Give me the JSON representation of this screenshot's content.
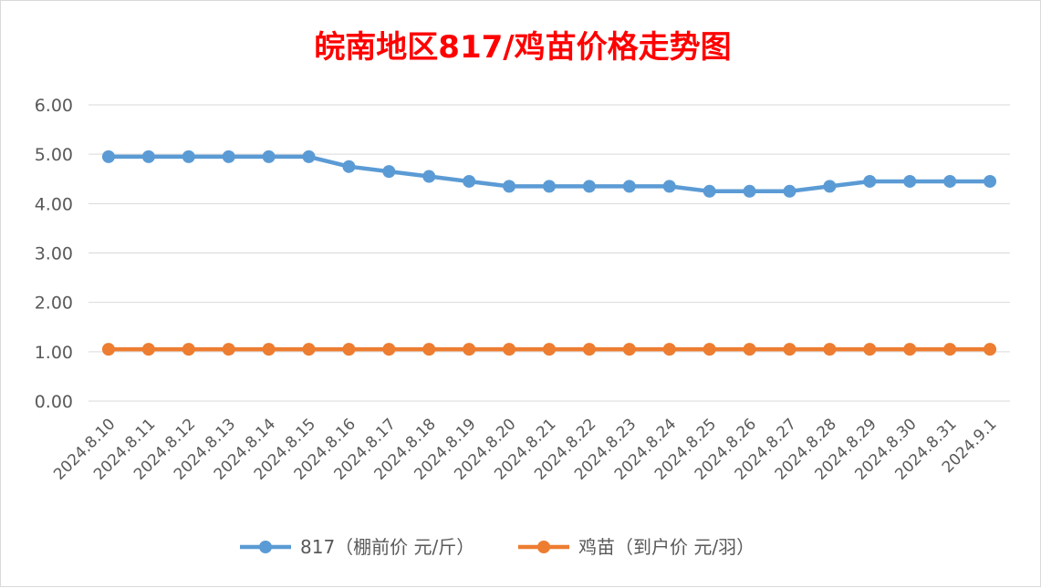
{
  "chart_data": {
    "type": "line",
    "title": "皖南地区817/鸡苗价格走势图",
    "xlabel": "",
    "ylabel": "",
    "ylim": [
      0,
      6
    ],
    "y_ticks": [
      "0.00",
      "1.00",
      "2.00",
      "3.00",
      "4.00",
      "5.00",
      "6.00"
    ],
    "grid": true,
    "legend_position": "bottom",
    "categories": [
      "2024.8.10",
      "2024.8.11",
      "2024.8.12",
      "2024.8.13",
      "2024.8.14",
      "2024.8.15",
      "2024.8.16",
      "2024.8.17",
      "2024.8.18",
      "2024.8.19",
      "2024.8.20",
      "2024.8.21",
      "2024.8.22",
      "2024.8.23",
      "2024.8.24",
      "2024.8.25",
      "2024.8.26",
      "2024.8.27",
      "2024.8.28",
      "2024.8.29",
      "2024.8.30",
      "2024.8.31",
      "2024.9.1"
    ],
    "series": [
      {
        "name": "817（棚前价 元/斤）",
        "color": "#5b9bd5",
        "values": [
          4.95,
          4.95,
          4.95,
          4.95,
          4.95,
          4.95,
          4.75,
          4.65,
          4.55,
          4.45,
          4.35,
          4.35,
          4.35,
          4.35,
          4.35,
          4.25,
          4.25,
          4.25,
          4.35,
          4.45,
          4.45,
          4.45,
          4.45
        ]
      },
      {
        "name": "鸡苗（到户价 元/羽）",
        "color": "#ed7d31",
        "values": [
          1.05,
          1.05,
          1.05,
          1.05,
          1.05,
          1.05,
          1.05,
          1.05,
          1.05,
          1.05,
          1.05,
          1.05,
          1.05,
          1.05,
          1.05,
          1.05,
          1.05,
          1.05,
          1.05,
          1.05,
          1.05,
          1.05,
          1.05
        ]
      }
    ]
  }
}
